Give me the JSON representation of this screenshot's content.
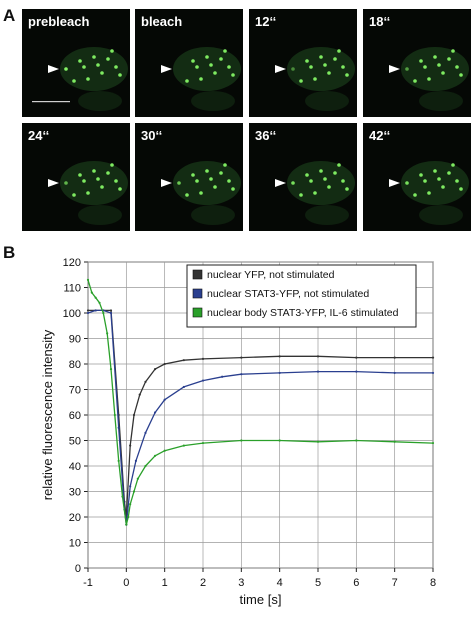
{
  "figure": {
    "panel_a_letter": "A",
    "panel_b_letter": "B",
    "panel_a": {
      "frames": [
        "prebleach",
        "bleach",
        "12‘‘",
        "18‘‘",
        "24‘‘",
        "30‘‘",
        "36‘‘",
        "42‘‘"
      ],
      "cell_color": "#1f4a1f",
      "spot_color": "#8bff6a",
      "arrowhead_color": "#ffffff",
      "scale_bar_color": "#cfcfcf"
    }
  },
  "chart_data": {
    "type": "line",
    "xlabel": "time [s]",
    "ylabel": "relative fluorescence intensity",
    "xlim": [
      -1,
      8
    ],
    "ylim": [
      0,
      120
    ],
    "xticks": [
      -1,
      0,
      1,
      2,
      3,
      4,
      5,
      6,
      7,
      8
    ],
    "yticks": [
      0,
      10,
      20,
      30,
      40,
      50,
      60,
      70,
      80,
      90,
      100,
      110,
      120
    ],
    "grid": true,
    "legend_position": "top-right",
    "series": [
      {
        "name": "nuclear YFP, not stimulated",
        "color": "#333333",
        "x": [
          -1,
          -0.8,
          -0.6,
          -0.4,
          -0.2,
          -0.05,
          0,
          0.1,
          0.2,
          0.35,
          0.5,
          0.75,
          1,
          1.5,
          2,
          3,
          4,
          5,
          6,
          7,
          8
        ],
        "y": [
          101,
          101,
          101,
          101,
          60,
          26,
          20,
          48,
          60,
          68,
          73,
          78,
          80,
          81.5,
          82,
          82.5,
          83,
          83,
          82.5,
          82.5,
          82.5
        ]
      },
      {
        "name": "nuclear STAT3-YFP, not stimulated",
        "color": "#2a3f8f",
        "x": [
          -1,
          -0.8,
          -0.6,
          -0.4,
          -0.2,
          -0.05,
          0,
          0.1,
          0.25,
          0.5,
          0.75,
          1,
          1.5,
          2,
          2.5,
          3,
          4,
          5,
          6,
          7,
          8
        ],
        "y": [
          100,
          101,
          101,
          100,
          55,
          23,
          17,
          32,
          42,
          53,
          61,
          66,
          71,
          73.5,
          75,
          76,
          76.5,
          77,
          77,
          76.5,
          76.5
        ]
      },
      {
        "name": "nuclear body STAT3-YFP, IL-6 stimulated",
        "color": "#2aa02a",
        "x": [
          -1,
          -0.9,
          -0.8,
          -0.7,
          -0.6,
          -0.5,
          -0.4,
          -0.3,
          -0.2,
          -0.1,
          0,
          0.05,
          0.1,
          0.2,
          0.3,
          0.5,
          0.75,
          1,
          1.5,
          2,
          3,
          4,
          5,
          6,
          7,
          8
        ],
        "y": [
          113,
          108,
          106,
          104,
          100,
          92,
          78,
          60,
          42,
          28,
          17,
          20,
          25,
          30,
          35,
          40,
          44,
          46,
          48,
          49,
          50,
          50,
          49.5,
          50,
          49.5,
          49
        ]
      }
    ]
  }
}
